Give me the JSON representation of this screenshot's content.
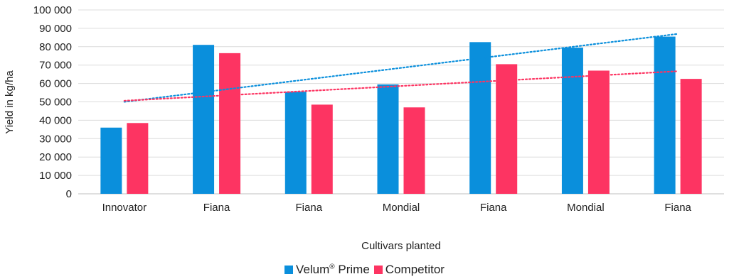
{
  "chart_data": {
    "type": "bar",
    "title": "",
    "xlabel": "Cultivars planted",
    "ylabel": "Yield in kg/ha",
    "ylim": [
      0,
      100000
    ],
    "ytick_step": 10000,
    "ytick_labels": [
      "0",
      "10 000",
      "20 000",
      "30 000",
      "40 000",
      "50 000",
      "60 000",
      "70 000",
      "80 000",
      "90 000",
      "100 000"
    ],
    "categories": [
      "Innovator",
      "Fiana",
      "Fiana",
      "Mondial",
      "Fiana",
      "Mondial",
      "Fiana"
    ],
    "series": [
      {
        "name": "Velum",
        "name_superscript": "®",
        "name_suffix": " Prime",
        "color": "#0a8fdc",
        "values": [
          36000,
          81000,
          55500,
          59500,
          82500,
          79500,
          85500
        ]
      },
      {
        "name": "Competitor",
        "color": "#fd3462",
        "values": [
          38500,
          76500,
          48500,
          47000,
          70500,
          67000,
          62500
        ]
      }
    ],
    "trendlines": [
      {
        "series": "Velum Prime",
        "style": "dotted",
        "color": "#0a8fdc"
      },
      {
        "series": "Competitor",
        "style": "dotted",
        "color": "#fd3462"
      }
    ],
    "grid": true,
    "legend_position": "bottom-center"
  }
}
